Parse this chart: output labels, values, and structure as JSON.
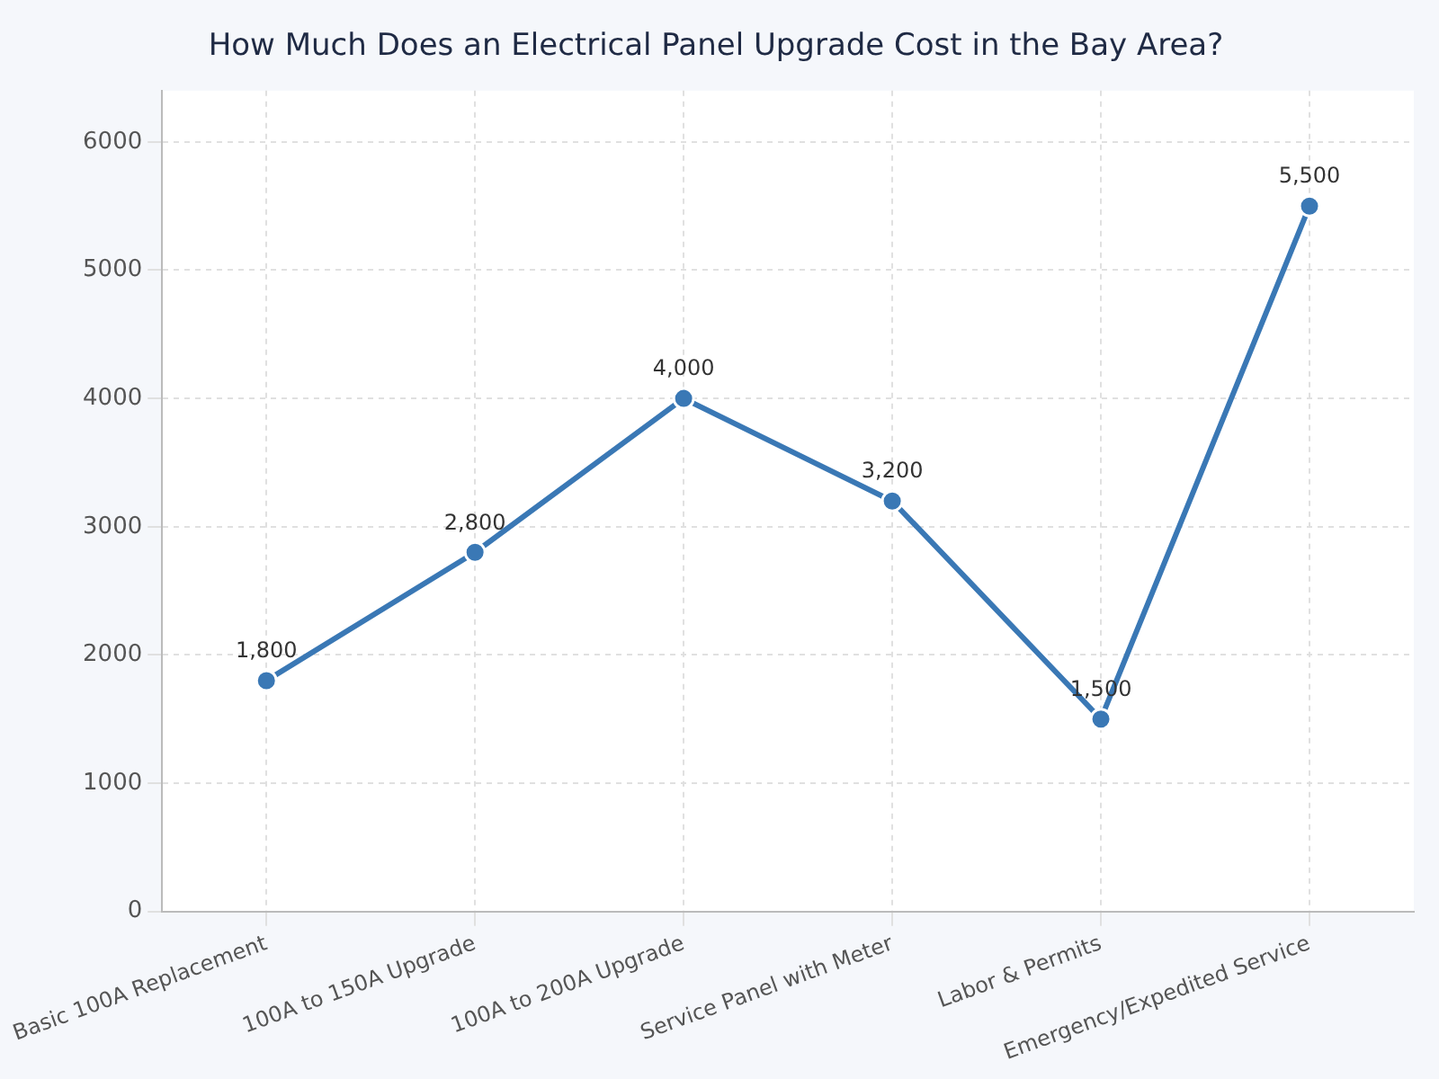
{
  "chart_data": {
    "type": "line",
    "title": "How Much Does an Electrical Panel Upgrade Cost in the Bay Area?",
    "categories": [
      "Basic 100A Replacement",
      "100A to 150A Upgrade",
      "100A to 200A Upgrade",
      "Service Panel with Meter",
      "Labor & Permits",
      "Emergency/Expedited Service"
    ],
    "values": [
      1800,
      2800,
      4000,
      3200,
      1500,
      5500
    ],
    "value_labels": [
      "1,800",
      "2,800",
      "4,000",
      "3,200",
      "1,500",
      "5,500"
    ],
    "color": "#3a78b5",
    "ylim": [
      0,
      6400
    ],
    "yticks": [
      0,
      1000,
      2000,
      3000,
      4000,
      5000,
      6000
    ],
    "grid": true,
    "legend": false,
    "marker": "circle",
    "line_style": "solid"
  }
}
